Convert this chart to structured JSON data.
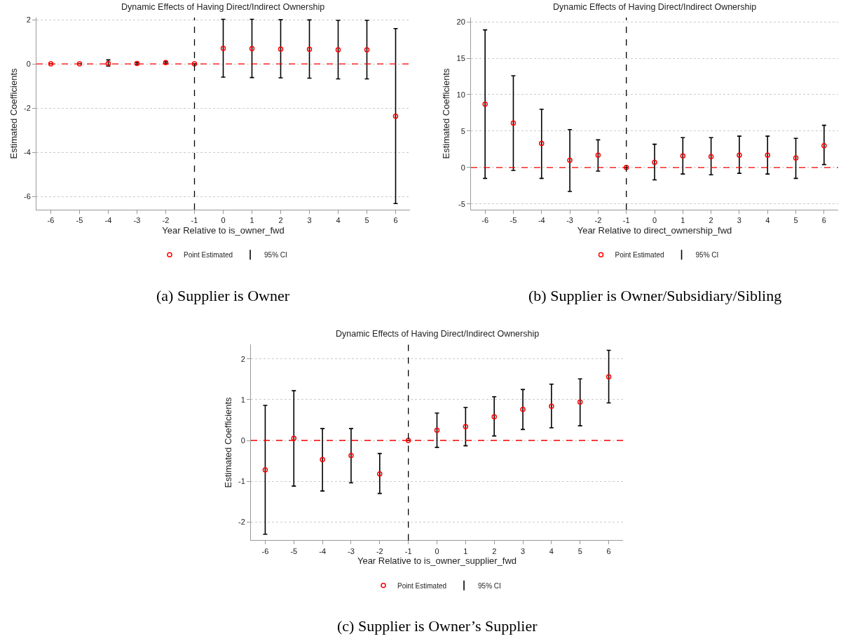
{
  "chart_data": [
    {
      "type": "scatter",
      "title": "Dynamic Effects of Having Direct/Indirect Ownership",
      "xlabel": "Year Relative to is_owner_fwd",
      "ylabel": "Estimated Coefficients",
      "x": [
        -6,
        -5,
        -4,
        -3,
        -2,
        -1,
        0,
        1,
        2,
        3,
        4,
        5,
        6
      ],
      "xlim": [
        -6.5,
        6.5
      ],
      "xticks": [
        -6,
        -5,
        -4,
        -3,
        -2,
        -1,
        0,
        1,
        2,
        3,
        4,
        5,
        6
      ],
      "ylim": [
        -6.6,
        2.1
      ],
      "yticks": [
        -6,
        -4,
        -2,
        0,
        2
      ],
      "grid": "y",
      "legend": "bottom",
      "marker": "circle",
      "series": [
        {
          "name": "Point Estimated",
          "color": "#ff0000",
          "values": [
            0,
            0,
            0.02,
            0.02,
            0.06,
            0,
            0.7,
            0.69,
            0.67,
            0.66,
            0.64,
            0.64,
            -2.37
          ],
          "errors": [
            [
              0,
              0
            ],
            [
              0,
              0
            ],
            [
              -0.1,
              0.18
            ],
            [
              -0.02,
              0.06
            ],
            [
              0.02,
              0.1
            ],
            null,
            [
              -0.6,
              2.02
            ],
            [
              -0.62,
              2.02
            ],
            [
              -0.63,
              2.0
            ],
            [
              -0.65,
              1.99
            ],
            [
              -0.68,
              1.97
            ],
            [
              -0.68,
              1.97
            ],
            [
              -6.32,
              1.6
            ]
          ]
        }
      ],
      "ref_lines": [
        {
          "axis": "y",
          "value": 0,
          "color": "#ff0000",
          "line_style": "dashed"
        },
        {
          "axis": "x",
          "value": -1,
          "color": "#000000",
          "line_style": "dashed"
        }
      ],
      "annotations": [
        "95% CI",
        "(a) Supplier is Owner"
      ]
    },
    {
      "type": "scatter",
      "title": "Dynamic Effects of Having Direct/Indirect Ownership",
      "xlabel": "Year Relative to direct_ownership_fwd",
      "ylabel": "Estimated Coefficients",
      "x": [
        -6,
        -5,
        -4,
        -3,
        -2,
        -1,
        0,
        1,
        2,
        3,
        4,
        5,
        6
      ],
      "xlim": [
        -6.5,
        6.5
      ],
      "xticks": [
        -6,
        -5,
        -4,
        -3,
        -2,
        -1,
        0,
        1,
        2,
        3,
        4,
        5,
        6
      ],
      "ylim": [
        -5.8,
        20.6
      ],
      "yticks": [
        -5,
        0,
        5,
        10,
        15,
        20
      ],
      "grid": "y",
      "legend": "bottom",
      "marker": "circle",
      "series": [
        {
          "name": "Point Estimated",
          "color": "#ff0000",
          "values": [
            8.7,
            6.1,
            3.3,
            1.0,
            1.7,
            0,
            0.7,
            1.6,
            1.5,
            1.7,
            1.7,
            1.3,
            3.0
          ],
          "errors": [
            [
              -1.5,
              18.9
            ],
            [
              -0.4,
              12.6
            ],
            [
              -1.5,
              8.0
            ],
            [
              -3.3,
              5.2
            ],
            [
              -0.5,
              3.8
            ],
            null,
            [
              -1.7,
              3.2
            ],
            [
              -0.9,
              4.1
            ],
            [
              -1.0,
              4.1
            ],
            [
              -0.8,
              4.3
            ],
            [
              -0.9,
              4.3
            ],
            [
              -1.5,
              4.0
            ],
            [
              0.4,
              5.8
            ]
          ]
        }
      ],
      "ref_lines": [
        {
          "axis": "y",
          "value": 0,
          "color": "#ff0000",
          "line_style": "dashed"
        },
        {
          "axis": "x",
          "value": -1,
          "color": "#000000",
          "line_style": "dashed"
        }
      ],
      "annotations": [
        "95% CI",
        "(b) Supplier is Owner/Subsidiary/Sibling"
      ]
    },
    {
      "type": "scatter",
      "title": "Dynamic Effects of Having Direct/Indirect Ownership",
      "xlabel": "Year Relative to is_owner_supplier_fwd",
      "ylabel": "Estimated Coefficients",
      "x": [
        -6,
        -5,
        -4,
        -3,
        -2,
        -1,
        0,
        1,
        2,
        3,
        4,
        5,
        6
      ],
      "xlim": [
        -6.5,
        6.5
      ],
      "xticks": [
        -6,
        -5,
        -4,
        -3,
        -2,
        -1,
        0,
        1,
        2,
        3,
        4,
        5,
        6
      ],
      "ylim": [
        -2.45,
        2.35
      ],
      "yticks": [
        -2,
        -1,
        0,
        1,
        2
      ],
      "grid": "y",
      "legend": "bottom",
      "marker": "circle",
      "series": [
        {
          "name": "Point Estimated",
          "color": "#ff0000",
          "values": [
            -0.72,
            0.05,
            -0.47,
            -0.37,
            -0.82,
            0,
            0.25,
            0.34,
            0.58,
            0.76,
            0.84,
            0.94,
            1.56
          ],
          "errors": [
            [
              -2.3,
              0.86
            ],
            [
              -1.12,
              1.22
            ],
            [
              -1.24,
              0.29
            ],
            [
              -1.04,
              0.29
            ],
            [
              -1.3,
              -0.32
            ],
            null,
            [
              -0.17,
              0.67
            ],
            [
              -0.13,
              0.81
            ],
            [
              0.11,
              1.07
            ],
            [
              0.27,
              1.25
            ],
            [
              0.31,
              1.38
            ],
            [
              0.36,
              1.51
            ],
            [
              0.92,
              2.21
            ]
          ]
        }
      ],
      "ref_lines": [
        {
          "axis": "y",
          "value": 0,
          "color": "#ff0000",
          "line_style": "dashed"
        },
        {
          "axis": "x",
          "value": -1,
          "color": "#000000",
          "line_style": "dashed"
        }
      ],
      "annotations": [
        "95% CI",
        "(c) Supplier is Owner’s Supplier"
      ]
    }
  ]
}
